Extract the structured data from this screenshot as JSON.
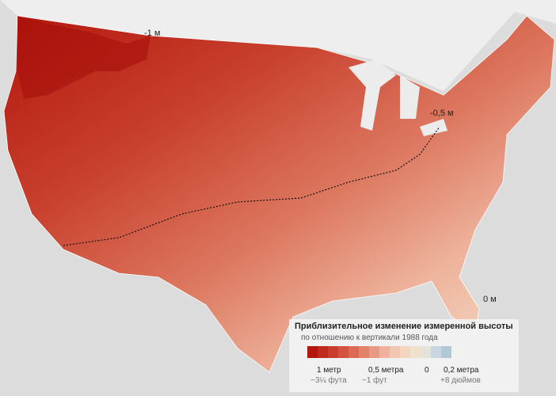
{
  "map": {
    "contour_labels": [
      "-1 м",
      "-0,5 м",
      "0 м"
    ],
    "legend": {
      "title": "Приблизительное изменение измеренной высоты",
      "subtitle": "по отношению к вертикали 1988 года",
      "colors": [
        "#b2180e",
        "#bf2a1c",
        "#c93d2c",
        "#d2533f",
        "#da6a55",
        "#e2826c",
        "#e99a85",
        "#efb29e",
        "#f3c6b2",
        "#f3d6c0",
        "#efe1cc",
        "#e3e3dc",
        "#c9d6df",
        "#b2c8d6"
      ],
      "metric_labels": [
        "1 метр",
        "0,5 метра",
        "0",
        "0,2 метра"
      ],
      "imperial_labels": [
        "−3¼ фута",
        "−1 фут",
        "+8 дюймов"
      ]
    }
  }
}
